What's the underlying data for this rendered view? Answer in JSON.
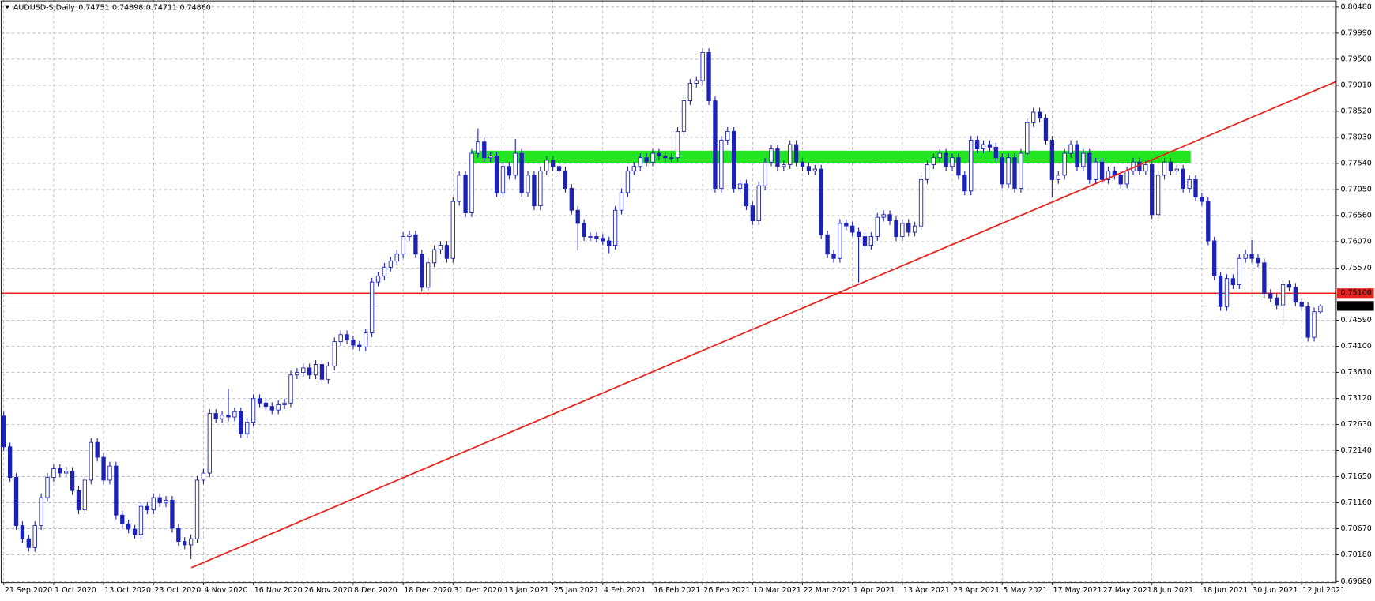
{
  "chart_data": {
    "type": "candlestick",
    "title": "AUDUSD-S,Daily",
    "header_values": [
      "0.74751",
      "0.74898",
      "0.74711",
      "0.74860"
    ],
    "categories": [
      "21 Sep 2020",
      null,
      null,
      null,
      null,
      null,
      null,
      null,
      "1 Oct 2020",
      null,
      null,
      null,
      null,
      null,
      null,
      null,
      "13 Oct 2020",
      null,
      null,
      null,
      null,
      null,
      null,
      null,
      "23 Oct 2020",
      null,
      null,
      null,
      null,
      null,
      null,
      null,
      "4 Nov 2020",
      null,
      null,
      null,
      null,
      null,
      null,
      null,
      "16 Nov 2020",
      null,
      null,
      null,
      null,
      null,
      null,
      null,
      "26 Nov 2020",
      null,
      null,
      null,
      null,
      null,
      null,
      null,
      "8 Dec 2020",
      null,
      null,
      null,
      null,
      null,
      null,
      null,
      "18 Dec 2020",
      null,
      null,
      null,
      null,
      null,
      null,
      null,
      "31 Dec 2020",
      null,
      null,
      null,
      null,
      null,
      null,
      null,
      "13 Jan 2021",
      null,
      null,
      null,
      null,
      null,
      null,
      null,
      "25 Jan 2021",
      null,
      null,
      null,
      null,
      null,
      null,
      null,
      "4 Feb 2021",
      null,
      null,
      null,
      null,
      null,
      null,
      null,
      "16 Feb 2021",
      null,
      null,
      null,
      null,
      null,
      null,
      null,
      "26 Feb 2021",
      null,
      null,
      null,
      null,
      null,
      null,
      null,
      "10 Mar 2021",
      null,
      null,
      null,
      null,
      null,
      null,
      null,
      "22 Mar 2021",
      null,
      null,
      null,
      null,
      null,
      null,
      null,
      "1 Apr 2021",
      null,
      null,
      null,
      null,
      null,
      null,
      null,
      "13 Apr 2021",
      null,
      null,
      null,
      null,
      null,
      null,
      null,
      "23 Apr 2021",
      null,
      null,
      null,
      null,
      null,
      null,
      null,
      "5 May 2021",
      null,
      null,
      null,
      null,
      null,
      null,
      null,
      "17 May 2021",
      null,
      null,
      null,
      null,
      null,
      null,
      null,
      "27 May 2021",
      null,
      null,
      null,
      null,
      null,
      null,
      null,
      "8 Jun 2021",
      null,
      null,
      null,
      null,
      null,
      null,
      null,
      "18 Jun 2021",
      null,
      null,
      null,
      null,
      null,
      null,
      null,
      "30 Jun 2021",
      null,
      null,
      null,
      null,
      null,
      null,
      null,
      "12 Jul 2021",
      null,
      null,
      null
    ],
    "open": [
      0.72789,
      0.72212,
      0.71636,
      0.7073,
      0.70483,
      0.70318,
      0.7073,
      0.71257,
      0.71636,
      0.71801,
      0.71718,
      0.71751,
      0.71389,
      0.71026,
      0.71586,
      0.72295,
      0.72015,
      0.71586,
      0.7185,
      0.70928,
      0.70763,
      0.70664,
      0.70565,
      0.71092,
      0.71026,
      0.71257,
      0.71158,
      0.71208,
      0.70681,
      0.70434,
      0.70368,
      0.70483,
      0.71586,
      0.71718,
      0.72838,
      0.72739,
      0.72805,
      0.72772,
      0.72871,
      0.72459,
      0.72674,
      0.73118,
      0.73036,
      0.7297,
      0.72904,
      0.73003,
      0.73036,
      0.73563,
      0.73612,
      0.73695,
      0.73563,
      0.7376,
      0.73481,
      0.73728,
      0.74189,
      0.7432,
      0.74222,
      0.74123,
      0.7409,
      0.74353,
      0.75309,
      0.75424,
      0.75589,
      0.75704,
      0.75836,
      0.76165,
      0.76198,
      0.75836,
      0.7521,
      0.75671,
      0.75918,
      0.76,
      0.75753,
      0.76824,
      0.77318,
      0.7661,
      0.7773,
      0.77944,
      0.77647,
      0.7768,
      0.76989,
      0.77483,
      0.77318,
      0.7773,
      0.76989,
      0.77318,
      0.76742,
      0.774,
      0.77598,
      0.77483,
      0.774,
      0.77071,
      0.76659,
      0.76412,
      0.76165,
      0.76165,
      0.76132,
      0.76083,
      0.76,
      0.76659,
      0.76989,
      0.774,
      0.77483,
      0.77647,
      0.77565,
      0.7773,
      0.7768,
      0.77647,
      0.77647,
      0.78142,
      0.78718,
      0.79047,
      0.79097,
      0.79624,
      0.78718,
      0.77071,
      0.77977,
      0.78142,
      0.77071,
      0.77153,
      0.76742,
      0.76462,
      0.7712,
      0.77565,
      0.77812,
      0.77483,
      0.77516,
      0.77894,
      0.77565,
      0.77483,
      0.774,
      0.77433,
      0.76198,
      0.75836,
      0.75753,
      0.76412,
      0.76363,
      0.76247,
      0.76165,
      0.76,
      0.76165,
      0.76527,
      0.76577,
      0.76462,
      0.76165,
      0.76412,
      0.76247,
      0.76363,
      0.77236,
      0.77516,
      0.77647,
      0.7773,
      0.77483,
      0.77647,
      0.77318,
      0.77022,
      0.77977,
      0.77812,
      0.77894,
      0.77845,
      0.77647,
      0.77153,
      0.77647,
      0.77071,
      0.7773,
      0.78306,
      0.78504,
      0.78389,
      0.77977,
      0.77236,
      0.77318,
      0.7773,
      0.77894,
      0.77483,
      0.7773,
      0.77236,
      0.77565,
      0.77236,
      0.774,
      0.77318,
      0.77153,
      0.774,
      0.77565,
      0.774,
      0.77516,
      0.76577,
      0.77318,
      0.77565,
      0.774,
      0.77433,
      0.77071,
      0.77236,
      0.76906,
      0.76824,
      0.76083,
      0.75424,
      0.74848,
      0.75375,
      0.75259,
      0.75753,
      0.75836,
      0.75753,
      0.75671,
      0.75095,
      0.75012,
      0.7488,
      0.75259,
      0.7521,
      0.7493,
      0.74848,
      0.74271,
      0.74751
    ],
    "high": [
      0.72869,
      0.72292,
      0.71716,
      0.7081,
      0.70563,
      0.7081,
      0.71337,
      0.71716,
      0.71881,
      0.71881,
      0.71831,
      0.71831,
      0.71469,
      0.71666,
      0.72375,
      0.72375,
      0.72095,
      0.7193,
      0.7193,
      0.71008,
      0.70843,
      0.70744,
      0.71172,
      0.71172,
      0.71337,
      0.71337,
      0.71288,
      0.71288,
      0.70761,
      0.70514,
      0.70563,
      0.71666,
      0.71798,
      0.72918,
      0.72918,
      0.72885,
      0.733,
      0.72951,
      0.72951,
      0.72754,
      0.73198,
      0.73198,
      0.73116,
      0.7305,
      0.73083,
      0.73116,
      0.73643,
      0.73692,
      0.73775,
      0.73775,
      0.7384,
      0.7384,
      0.73808,
      0.74269,
      0.744,
      0.744,
      0.74302,
      0.74203,
      0.74433,
      0.75389,
      0.75504,
      0.75669,
      0.75784,
      0.75916,
      0.76245,
      0.76278,
      0.76278,
      0.75916,
      0.75751,
      0.75998,
      0.7608,
      0.7608,
      0.76904,
      0.77398,
      0.77398,
      0.7781,
      0.782,
      0.78024,
      0.7776,
      0.7776,
      0.77563,
      0.77563,
      0.78,
      0.7781,
      0.77398,
      0.77398,
      0.7748,
      0.77678,
      0.77678,
      0.77563,
      0.7748,
      0.77151,
      0.76739,
      0.76492,
      0.76245,
      0.76245,
      0.76212,
      0.76163,
      0.76739,
      0.77069,
      0.7748,
      0.77563,
      0.77727,
      0.77727,
      0.7781,
      0.7781,
      0.7776,
      0.77727,
      0.78222,
      0.78798,
      0.79127,
      0.79177,
      0.79704,
      0.79704,
      0.78798,
      0.78057,
      0.78222,
      0.78222,
      0.77233,
      0.77233,
      0.76822,
      0.772,
      0.77645,
      0.77892,
      0.77892,
      0.77596,
      0.77974,
      0.77974,
      0.77645,
      0.77563,
      0.77513,
      0.77513,
      0.76278,
      0.75916,
      0.76492,
      0.76492,
      0.76443,
      0.76327,
      0.76245,
      0.76245,
      0.76607,
      0.76657,
      0.76657,
      0.76542,
      0.76492,
      0.76492,
      0.76443,
      0.77316,
      0.77596,
      0.77727,
      0.7781,
      0.7781,
      0.77727,
      0.77727,
      0.77398,
      0.78057,
      0.78057,
      0.77974,
      0.77974,
      0.77925,
      0.77727,
      0.77727,
      0.77727,
      0.7781,
      0.78386,
      0.78584,
      0.78584,
      0.78469,
      0.78057,
      0.77398,
      0.7781,
      0.77974,
      0.77974,
      0.7781,
      0.7781,
      0.77645,
      0.77645,
      0.7748,
      0.7748,
      0.77398,
      0.7748,
      0.77645,
      0.77645,
      0.77596,
      0.77596,
      0.77398,
      0.77645,
      0.77645,
      0.77513,
      0.77513,
      0.77316,
      0.77316,
      0.76986,
      0.76904,
      0.76163,
      0.75504,
      0.75455,
      0.75455,
      0.75833,
      0.75916,
      0.761,
      0.75833,
      0.75751,
      0.75175,
      0.75092,
      0.75339,
      0.75339,
      0.7529,
      0.7501,
      0.74928,
      0.74831,
      0.74898
    ],
    "low": [
      0.72132,
      0.71556,
      0.7065,
      0.70403,
      0.70238,
      0.70238,
      0.7065,
      0.71177,
      0.71556,
      0.71638,
      0.71638,
      0.71309,
      0.70946,
      0.70946,
      0.71506,
      0.71935,
      0.71506,
      0.71506,
      0.70848,
      0.70683,
      0.70584,
      0.70485,
      0.70485,
      0.70946,
      0.70946,
      0.71078,
      0.71078,
      0.70601,
      0.70354,
      0.70288,
      0.701,
      0.70403,
      0.71506,
      0.71638,
      0.72659,
      0.72659,
      0.72692,
      0.72692,
      0.72379,
      0.72379,
      0.72594,
      0.72956,
      0.7289,
      0.72824,
      0.72824,
      0.72923,
      0.72956,
      0.73483,
      0.73532,
      0.73483,
      0.73483,
      0.73401,
      0.73401,
      0.73648,
      0.74109,
      0.74142,
      0.74043,
      0.7401,
      0.7401,
      0.74273,
      0.75229,
      0.75344,
      0.75509,
      0.75624,
      0.75756,
      0.76085,
      0.75756,
      0.7513,
      0.7513,
      0.75591,
      0.75838,
      0.75673,
      0.75673,
      0.76744,
      0.7653,
      0.7653,
      0.7765,
      0.77567,
      0.77567,
      0.76909,
      0.76909,
      0.77238,
      0.77238,
      0.76909,
      0.76909,
      0.76662,
      0.76662,
      0.7732,
      0.77403,
      0.7732,
      0.76991,
      0.76579,
      0.759,
      0.76085,
      0.76085,
      0.76052,
      0.76003,
      0.7585,
      0.7592,
      0.76579,
      0.76909,
      0.7732,
      0.77403,
      0.77485,
      0.77485,
      0.776,
      0.77567,
      0.77567,
      0.77567,
      0.78062,
      0.78638,
      0.78967,
      0.79017,
      0.78638,
      0.76991,
      0.76991,
      0.77897,
      0.76991,
      0.76991,
      0.76662,
      0.76382,
      0.76382,
      0.7704,
      0.77485,
      0.77403,
      0.77403,
      0.77436,
      0.77485,
      0.77403,
      0.7732,
      0.7732,
      0.76118,
      0.75756,
      0.75673,
      0.75673,
      0.76283,
      0.76167,
      0.753,
      0.7592,
      0.7592,
      0.76085,
      0.76447,
      0.76382,
      0.76085,
      0.76085,
      0.76167,
      0.76167,
      0.76283,
      0.77156,
      0.77436,
      0.77567,
      0.77403,
      0.77403,
      0.77238,
      0.76942,
      0.76942,
      0.77732,
      0.77732,
      0.77765,
      0.77567,
      0.77073,
      0.77073,
      0.76991,
      0.76991,
      0.7765,
      0.78226,
      0.78309,
      0.77897,
      0.769,
      0.77156,
      0.77238,
      0.7765,
      0.77403,
      0.77403,
      0.77156,
      0.77156,
      0.77156,
      0.77156,
      0.77238,
      0.77073,
      0.77073,
      0.7732,
      0.7732,
      0.7732,
      0.76497,
      0.76497,
      0.77238,
      0.7732,
      0.7732,
      0.76991,
      0.76991,
      0.76826,
      0.76744,
      0.76003,
      0.75344,
      0.74768,
      0.74768,
      0.75179,
      0.75179,
      0.75673,
      0.75673,
      0.75591,
      0.75015,
      0.74932,
      0.748,
      0.745,
      0.7513,
      0.7485,
      0.74768,
      0.74191,
      0.74191,
      0.74711
    ],
    "close": [
      0.72212,
      0.71636,
      0.7073,
      0.70483,
      0.70318,
      0.7073,
      0.71257,
      0.71636,
      0.71801,
      0.71718,
      0.71751,
      0.71389,
      0.71026,
      0.71586,
      0.72295,
      0.72015,
      0.71586,
      0.7185,
      0.70928,
      0.70763,
      0.70664,
      0.70565,
      0.71092,
      0.71026,
      0.71257,
      0.71158,
      0.71208,
      0.70681,
      0.70434,
      0.70368,
      0.70483,
      0.71586,
      0.71718,
      0.72838,
      0.72739,
      0.72805,
      0.72772,
      0.72871,
      0.72459,
      0.72674,
      0.73118,
      0.73036,
      0.7297,
      0.72904,
      0.73003,
      0.73036,
      0.73563,
      0.73612,
      0.73695,
      0.73563,
      0.7376,
      0.73481,
      0.73728,
      0.74189,
      0.7432,
      0.74222,
      0.74123,
      0.7409,
      0.74353,
      0.75309,
      0.75424,
      0.75589,
      0.75704,
      0.75836,
      0.76165,
      0.76198,
      0.75836,
      0.7521,
      0.75671,
      0.75918,
      0.76,
      0.75753,
      0.76824,
      0.77318,
      0.7661,
      0.7773,
      0.77944,
      0.77647,
      0.7768,
      0.76989,
      0.77483,
      0.77318,
      0.7773,
      0.76989,
      0.77318,
      0.76742,
      0.774,
      0.77598,
      0.77483,
      0.774,
      0.77071,
      0.76659,
      0.76412,
      0.76165,
      0.76165,
      0.76132,
      0.76083,
      0.76,
      0.76659,
      0.76989,
      0.774,
      0.77483,
      0.77647,
      0.77565,
      0.7773,
      0.7768,
      0.77647,
      0.77647,
      0.78142,
      0.78718,
      0.79047,
      0.79097,
      0.79624,
      0.78718,
      0.77071,
      0.77977,
      0.78142,
      0.77071,
      0.77153,
      0.76742,
      0.76462,
      0.7712,
      0.77565,
      0.77812,
      0.77483,
      0.77516,
      0.77894,
      0.77565,
      0.77483,
      0.774,
      0.77433,
      0.76198,
      0.75836,
      0.75753,
      0.76412,
      0.76363,
      0.76247,
      0.76165,
      0.76,
      0.76165,
      0.76527,
      0.76577,
      0.76462,
      0.76165,
      0.76412,
      0.76247,
      0.76363,
      0.77236,
      0.77516,
      0.77647,
      0.7773,
      0.77483,
      0.77647,
      0.77318,
      0.77022,
      0.77977,
      0.77812,
      0.77894,
      0.77845,
      0.77647,
      0.77153,
      0.77647,
      0.77071,
      0.7773,
      0.78306,
      0.78504,
      0.78389,
      0.77977,
      0.77236,
      0.77318,
      0.7773,
      0.77894,
      0.77483,
      0.7773,
      0.77236,
      0.77565,
      0.77236,
      0.774,
      0.77318,
      0.77153,
      0.774,
      0.77565,
      0.774,
      0.77516,
      0.76577,
      0.77318,
      0.77565,
      0.774,
      0.77433,
      0.77071,
      0.77236,
      0.76906,
      0.76824,
      0.76083,
      0.75424,
      0.74848,
      0.75375,
      0.75259,
      0.75753,
      0.75836,
      0.75753,
      0.75671,
      0.75095,
      0.75012,
      0.7488,
      0.75259,
      0.7521,
      0.7493,
      0.74848,
      0.74271,
      0.74751,
      0.7486
    ],
    "ylim": [
      0.69659,
      0.80612
    ],
    "yticks": [
      {
        "value": 0.6968,
        "label": "0.69680"
      },
      {
        "value": 0.7018,
        "label": "0.70180"
      },
      {
        "value": 0.7067,
        "label": "0.70670"
      },
      {
        "value": 0.7116,
        "label": "0.71160"
      },
      {
        "value": 0.7165,
        "label": "0.71650"
      },
      {
        "value": 0.7214,
        "label": "0.72140"
      },
      {
        "value": 0.7263,
        "label": "0.72630"
      },
      {
        "value": 0.7312,
        "label": "0.73120"
      },
      {
        "value": 0.7361,
        "label": "0.73610"
      },
      {
        "value": 0.741,
        "label": "0.74100"
      },
      {
        "value": 0.7459,
        "label": "0.74590"
      },
      {
        "value": 0.7557,
        "label": "0.75570"
      },
      {
        "value": 0.7607,
        "label": "0.76070"
      },
      {
        "value": 0.7656,
        "label": "0.76560"
      },
      {
        "value": 0.7705,
        "label": "0.77050"
      },
      {
        "value": 0.7754,
        "label": "0.77540"
      },
      {
        "value": 0.7803,
        "label": "0.78030"
      },
      {
        "value": 0.7852,
        "label": "0.78520"
      },
      {
        "value": 0.7901,
        "label": "0.79010"
      },
      {
        "value": 0.795,
        "label": "0.79500"
      },
      {
        "value": 0.7999,
        "label": "0.79990"
      },
      {
        "value": 0.8048,
        "label": "0.80480"
      }
    ],
    "grid": true,
    "colors": {
      "candle": "#1c22b4",
      "up_fill": "#ffffff",
      "down_fill": "#1c22b4"
    },
    "hline": {
      "value": 0.751,
      "label": "0.75100",
      "color": "#e8221c"
    },
    "current_price": {
      "value": 0.7486,
      "label": "0.74860",
      "color": "#9a9a9a"
    }
  }
}
